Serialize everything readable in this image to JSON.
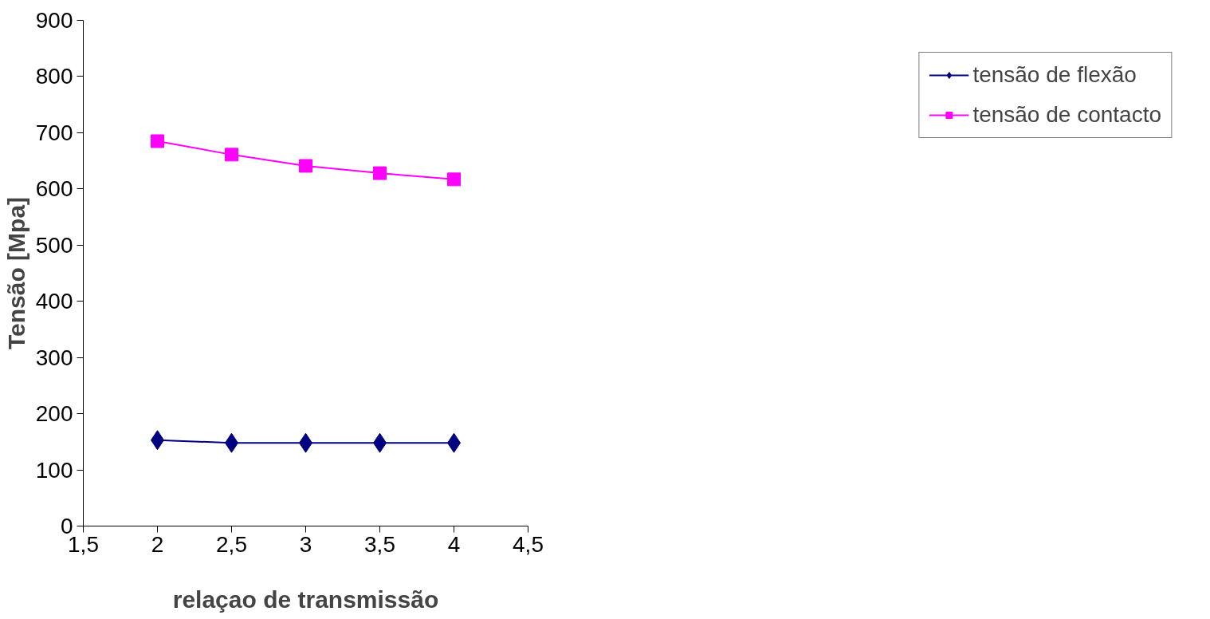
{
  "chart_data": {
    "type": "line",
    "xlabel": "relaçao de transmissão",
    "ylabel": "Tensão [Mpa]",
    "x": [
      2,
      2.5,
      3,
      3.5,
      4
    ],
    "series": [
      {
        "name": "tensão de flexão",
        "color": "#000080",
        "marker": "diamond",
        "values": [
          153,
          148,
          148,
          148,
          148
        ]
      },
      {
        "name": "tensão de contacto",
        "color": "#ff00ff",
        "marker": "square",
        "values": [
          685,
          661,
          641,
          628,
          617
        ]
      }
    ],
    "xlim": [
      1.5,
      4.5
    ],
    "xticks": [
      {
        "value": 1.5,
        "label": "1,5"
      },
      2,
      {
        "value": 2.5,
        "label": "2,5"
      },
      3,
      {
        "value": 3.5,
        "label": "3,5"
      },
      4,
      {
        "value": 4.5,
        "label": "4,5"
      }
    ],
    "ylim": [
      0,
      900
    ],
    "yticks": [
      0,
      100,
      200,
      300,
      400,
      500,
      600,
      700,
      800,
      900
    ],
    "grid": false,
    "legend": "right"
  }
}
